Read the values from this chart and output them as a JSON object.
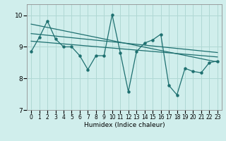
{
  "xlabel": "Humidex (Indice chaleur)",
  "xlim": [
    -0.5,
    23.5
  ],
  "ylim": [
    7,
    10.35
  ],
  "yticks": [
    7,
    8,
    9,
    10
  ],
  "xticks": [
    0,
    1,
    2,
    3,
    4,
    5,
    6,
    7,
    8,
    9,
    10,
    11,
    12,
    13,
    14,
    15,
    16,
    17,
    18,
    19,
    20,
    21,
    22,
    23
  ],
  "bg_color": "#d0eeec",
  "grid_color": "#b0d8d4",
  "line_color": "#1e7070",
  "data_x": [
    0,
    1,
    2,
    3,
    4,
    5,
    6,
    7,
    8,
    9,
    10,
    11,
    12,
    13,
    14,
    15,
    16,
    17,
    18,
    19,
    20,
    21,
    22,
    23
  ],
  "data_y": [
    8.85,
    9.3,
    9.82,
    9.25,
    9.0,
    9.0,
    8.72,
    8.28,
    8.72,
    8.72,
    10.02,
    8.82,
    7.58,
    8.85,
    9.12,
    9.22,
    9.4,
    7.78,
    7.48,
    8.32,
    8.22,
    8.18,
    8.5,
    8.55
  ],
  "trend1_x": [
    0,
    23
  ],
  "trend1_y": [
    9.72,
    8.52
  ],
  "trend2_x": [
    0,
    23
  ],
  "trend2_y": [
    9.42,
    8.82
  ],
  "trend3_x": [
    0,
    23
  ],
  "trend3_y": [
    9.18,
    8.68
  ]
}
